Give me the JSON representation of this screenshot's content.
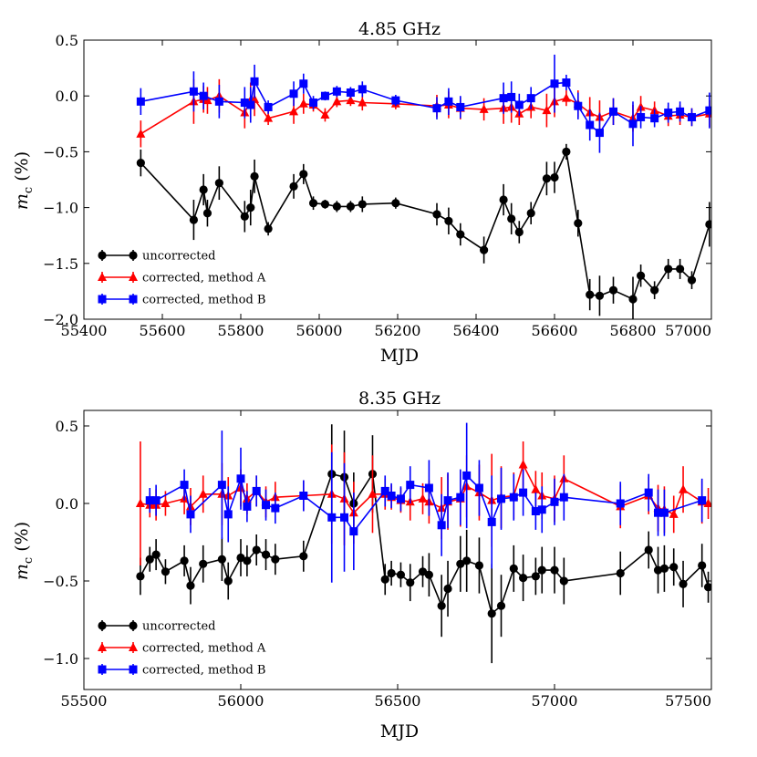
{
  "figure": {
    "colors": {
      "uncorrected": "#000000",
      "method_a": "#ff0000",
      "method_b": "#0000ff"
    }
  },
  "chart_data": [
    {
      "type": "line",
      "title": "4.85 GHz",
      "xlabel": "MJD",
      "ylabel_main": "m",
      "ylabel_sub": "c",
      "ylabel_unit": " (%)",
      "xlim": [
        55400,
        57000
      ],
      "ylim": [
        -2.0,
        0.5
      ],
      "xticks": [
        55400,
        55600,
        55800,
        56000,
        56200,
        56400,
        56600,
        56800,
        57000
      ],
      "xtick_labels": [
        "55400",
        "55600",
        "55800",
        "56000",
        "56200",
        "56400",
        "56600",
        "56800",
        "57000"
      ],
      "yticks": [
        -2.0,
        -1.5,
        -1.0,
        -0.5,
        0.0,
        0.5
      ],
      "ytick_labels": [
        "−2.0",
        "−1.5",
        "−1.0",
        "−0.5",
        "0.0",
        "0.5"
      ],
      "grid": false,
      "legend_position": "bottom-left",
      "series": [
        {
          "name": "uncorrected",
          "marker": "circle",
          "color": "#000000",
          "x": [
            55545,
            55680,
            55705,
            55715,
            55745,
            55810,
            55825,
            55835,
            55870,
            55935,
            55960,
            55985,
            56015,
            56045,
            56080,
            56110,
            56195,
            56300,
            56330,
            56360,
            56420,
            56470,
            56490,
            56510,
            56540,
            56580,
            56600,
            56630,
            56660,
            56690,
            56715,
            56750,
            56800,
            56820,
            56855,
            56890,
            56920,
            56950,
            56995
          ],
          "y": [
            -0.6,
            -1.11,
            -0.84,
            -1.05,
            -0.78,
            -1.08,
            -1.0,
            -0.72,
            -1.19,
            -0.81,
            -0.7,
            -0.96,
            -0.97,
            -0.99,
            -0.99,
            -0.97,
            -0.96,
            -1.06,
            -1.12,
            -1.24,
            -1.38,
            -0.93,
            -1.1,
            -1.22,
            -1.05,
            -0.74,
            -0.73,
            -0.5,
            -1.14,
            -1.78,
            -1.79,
            -1.74,
            -1.82,
            -1.61,
            -1.74,
            -1.55,
            -1.55,
            -1.65,
            -1.15
          ],
          "err": [
            0.12,
            0.18,
            0.14,
            0.12,
            0.15,
            0.14,
            0.16,
            0.15,
            0.06,
            0.11,
            0.09,
            0.06,
            0.04,
            0.05,
            0.05,
            0.07,
            0.05,
            0.1,
            0.12,
            0.1,
            0.12,
            0.14,
            0.14,
            0.1,
            0.1,
            0.15,
            0.14,
            0.07,
            0.12,
            0.14,
            0.18,
            0.12,
            0.2,
            0.1,
            0.08,
            0.09,
            0.09,
            0.08,
            0.2
          ]
        },
        {
          "name": "corrected, method A",
          "marker": "triangle",
          "color": "#ff0000",
          "x": [
            55545,
            55680,
            55705,
            55715,
            55745,
            55810,
            55825,
            55835,
            55870,
            55935,
            55960,
            55985,
            56015,
            56045,
            56080,
            56110,
            56195,
            56300,
            56330,
            56360,
            56420,
            56470,
            56490,
            56510,
            56540,
            56580,
            56600,
            56630,
            56660,
            56690,
            56715,
            56750,
            56800,
            56820,
            56855,
            56890,
            56920,
            56950,
            56995
          ],
          "y": [
            -0.34,
            -0.05,
            -0.03,
            -0.04,
            0.0,
            -0.15,
            -0.04,
            -0.03,
            -0.2,
            -0.14,
            -0.07,
            -0.08,
            -0.17,
            -0.05,
            -0.04,
            -0.06,
            -0.07,
            -0.09,
            -0.08,
            -0.11,
            -0.12,
            -0.11,
            -0.1,
            -0.16,
            -0.1,
            -0.13,
            -0.05,
            -0.02,
            -0.07,
            -0.15,
            -0.19,
            -0.14,
            -0.2,
            -0.1,
            -0.13,
            -0.18,
            -0.17,
            -0.19,
            -0.16
          ],
          "err": [
            0.12,
            0.2,
            0.12,
            0.12,
            0.15,
            0.14,
            0.16,
            0.15,
            0.06,
            0.11,
            0.09,
            0.06,
            0.06,
            0.05,
            0.05,
            0.07,
            0.05,
            0.1,
            0.12,
            0.1,
            0.1,
            0.14,
            0.14,
            0.1,
            0.1,
            0.15,
            0.14,
            0.07,
            0.12,
            0.14,
            0.15,
            0.12,
            0.12,
            0.1,
            0.08,
            0.09,
            0.09,
            0.08,
            0.12
          ]
        },
        {
          "name": "corrected, method B",
          "marker": "square",
          "color": "#0000ff",
          "x": [
            55545,
            55680,
            55705,
            55745,
            55810,
            55825,
            55835,
            55870,
            55935,
            55960,
            55985,
            56015,
            56045,
            56080,
            56110,
            56195,
            56300,
            56330,
            56360,
            56470,
            56490,
            56510,
            56540,
            56600,
            56630,
            56660,
            56690,
            56715,
            56750,
            56800,
            56820,
            56855,
            56890,
            56920,
            56950,
            56995
          ],
          "y": [
            -0.05,
            0.04,
            0.0,
            -0.05,
            -0.06,
            -0.08,
            0.13,
            -0.1,
            0.02,
            0.11,
            -0.06,
            0.0,
            0.04,
            0.03,
            0.06,
            -0.04,
            -0.11,
            -0.05,
            -0.1,
            -0.02,
            -0.01,
            -0.08,
            -0.02,
            0.11,
            0.12,
            -0.09,
            -0.26,
            -0.33,
            -0.14,
            -0.25,
            -0.19,
            -0.2,
            -0.15,
            -0.14,
            -0.19,
            -0.13
          ],
          "err": [
            0.12,
            0.18,
            0.12,
            0.15,
            0.14,
            0.16,
            0.15,
            0.06,
            0.11,
            0.09,
            0.06,
            0.04,
            0.05,
            0.05,
            0.07,
            0.05,
            0.1,
            0.12,
            0.1,
            0.14,
            0.14,
            0.1,
            0.1,
            0.26,
            0.07,
            0.12,
            0.14,
            0.18,
            0.12,
            0.2,
            0.1,
            0.08,
            0.09,
            0.09,
            0.08,
            0.16
          ]
        }
      ]
    },
    {
      "type": "line",
      "title": "8.35 GHz",
      "xlabel": "MJD",
      "ylabel_main": "m",
      "ylabel_sub": "c",
      "ylabel_unit": " (%)",
      "xlim": [
        55500,
        57500
      ],
      "ylim": [
        -1.2,
        0.6
      ],
      "xticks": [
        55500,
        56000,
        56500,
        57000,
        57500
      ],
      "xtick_labels": [
        "55500",
        "56000",
        "56500",
        "57000",
        "57500"
      ],
      "yticks": [
        -1.0,
        -0.5,
        0.0,
        0.5
      ],
      "ytick_labels": [
        "−1.0",
        "−0.5",
        "0.0",
        "0.5"
      ],
      "grid": false,
      "legend_position": "bottom-left",
      "series": [
        {
          "name": "uncorrected",
          "marker": "circle",
          "color": "#000000",
          "x": [
            55680,
            55710,
            55730,
            55760,
            55820,
            55840,
            55880,
            55940,
            55960,
            56000,
            56020,
            56050,
            56080,
            56110,
            56200,
            56290,
            56330,
            56360,
            56420,
            56460,
            56480,
            56510,
            56540,
            56580,
            56600,
            56640,
            56660,
            56700,
            56720,
            56760,
            56800,
            56830,
            56870,
            56900,
            56940,
            56960,
            57000,
            57030,
            57210,
            57300,
            57330,
            57350,
            57380,
            57410,
            57470,
            57490
          ],
          "y": [
            -0.47,
            -0.36,
            -0.33,
            -0.44,
            -0.37,
            -0.53,
            -0.39,
            -0.36,
            -0.5,
            -0.35,
            -0.37,
            -0.3,
            -0.33,
            -0.36,
            -0.34,
            0.19,
            0.17,
            0.0,
            0.19,
            -0.49,
            -0.45,
            -0.46,
            -0.51,
            -0.44,
            -0.46,
            -0.66,
            -0.55,
            -0.39,
            -0.37,
            -0.4,
            -0.71,
            -0.66,
            -0.42,
            -0.48,
            -0.47,
            -0.43,
            -0.43,
            -0.5,
            -0.45,
            -0.3,
            -0.43,
            -0.42,
            -0.41,
            -0.52,
            -0.4,
            -0.54
          ],
          "err": [
            0.12,
            0.08,
            0.1,
            0.08,
            0.1,
            0.12,
            0.12,
            0.14,
            0.12,
            0.12,
            0.1,
            0.1,
            0.1,
            0.1,
            0.1,
            0.32,
            0.3,
            0.2,
            0.25,
            0.1,
            0.08,
            0.08,
            0.12,
            0.1,
            0.14,
            0.2,
            0.18,
            0.18,
            0.2,
            0.18,
            0.32,
            0.2,
            0.15,
            0.15,
            0.12,
            0.15,
            0.15,
            0.15,
            0.14,
            0.12,
            0.15,
            0.15,
            0.12,
            0.15,
            0.14,
            0.1
          ]
        },
        {
          "name": "corrected, method A",
          "marker": "triangle",
          "color": "#ff0000",
          "x": [
            55680,
            55710,
            55730,
            55760,
            55820,
            55840,
            55880,
            55940,
            55960,
            56000,
            56020,
            56050,
            56080,
            56110,
            56200,
            56290,
            56330,
            56360,
            56420,
            56460,
            56480,
            56510,
            56540,
            56580,
            56600,
            56640,
            56660,
            56700,
            56720,
            56760,
            56800,
            56830,
            56870,
            56900,
            56940,
            56960,
            57000,
            57030,
            57210,
            57300,
            57330,
            57350,
            57380,
            57410,
            57470,
            57490
          ],
          "y": [
            0.0,
            -0.01,
            -0.01,
            0.0,
            0.03,
            -0.02,
            0.06,
            0.06,
            0.05,
            0.1,
            0.03,
            0.08,
            0.01,
            0.04,
            0.05,
            0.06,
            0.03,
            -0.06,
            0.06,
            0.06,
            0.04,
            0.02,
            0.01,
            0.03,
            0.01,
            -0.03,
            0.01,
            0.03,
            0.11,
            0.07,
            0.02,
            0.04,
            0.05,
            0.25,
            0.09,
            0.05,
            0.03,
            0.16,
            -0.02,
            0.05,
            -0.03,
            -0.04,
            -0.07,
            0.09,
            0.01,
            0.0
          ],
          "err": [
            0.4,
            0.08,
            0.1,
            0.08,
            0.1,
            0.12,
            0.12,
            0.2,
            0.12,
            0.12,
            0.1,
            0.1,
            0.1,
            0.1,
            0.1,
            0.32,
            0.3,
            0.2,
            0.25,
            0.1,
            0.08,
            0.08,
            0.12,
            0.1,
            0.14,
            0.2,
            0.18,
            0.18,
            0.2,
            0.18,
            0.3,
            0.2,
            0.15,
            0.15,
            0.12,
            0.15,
            0.15,
            0.15,
            0.14,
            0.12,
            0.15,
            0.15,
            0.12,
            0.15,
            0.14,
            0.1
          ]
        },
        {
          "name": "corrected, method B",
          "marker": "square",
          "color": "#0000ff",
          "x": [
            55710,
            55730,
            55820,
            55840,
            55940,
            55960,
            56000,
            56020,
            56050,
            56080,
            56110,
            56200,
            56290,
            56330,
            56360,
            56460,
            56480,
            56510,
            56540,
            56600,
            56640,
            56660,
            56700,
            56720,
            56760,
            56800,
            56830,
            56870,
            56900,
            56940,
            56960,
            57000,
            57030,
            57210,
            57300,
            57330,
            57350,
            57470
          ],
          "y": [
            0.02,
            0.02,
            0.12,
            -0.07,
            0.12,
            -0.07,
            0.16,
            -0.02,
            0.08,
            -0.01,
            -0.03,
            0.05,
            -0.09,
            -0.09,
            -0.18,
            0.08,
            0.05,
            0.03,
            0.12,
            0.1,
            -0.14,
            0.02,
            0.04,
            0.18,
            0.1,
            -0.12,
            0.03,
            0.04,
            0.07,
            -0.05,
            -0.04,
            0.01,
            0.04,
            0.0,
            0.07,
            -0.06,
            -0.06,
            0.02
          ],
          "err": [
            0.08,
            0.1,
            0.1,
            0.12,
            0.35,
            0.18,
            0.2,
            0.1,
            0.1,
            0.1,
            0.1,
            0.1,
            0.42,
            0.35,
            0.25,
            0.1,
            0.08,
            0.08,
            0.12,
            0.18,
            0.2,
            0.18,
            0.18,
            0.34,
            0.18,
            0.3,
            0.2,
            0.15,
            0.15,
            0.12,
            0.15,
            0.15,
            0.15,
            0.14,
            0.12,
            0.15,
            0.15,
            0.14
          ]
        }
      ]
    }
  ]
}
